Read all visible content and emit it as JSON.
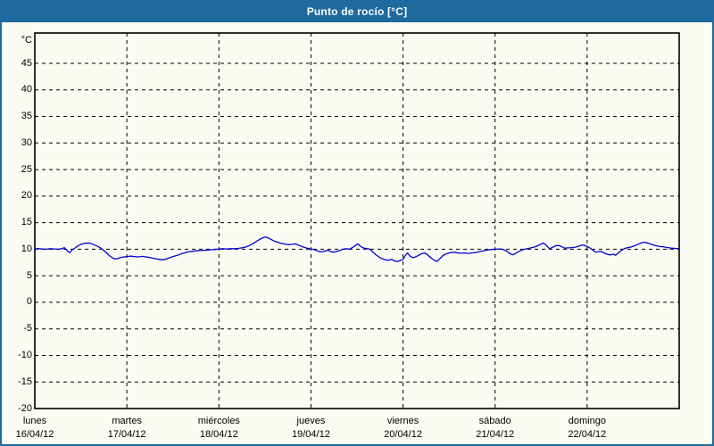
{
  "window": {
    "title": "Punto de rocío [°C]"
  },
  "colors": {
    "titlebar_bg": "#1e6a9e",
    "titlebar_text": "#ffffff",
    "page_bg": "#fafcf4",
    "outer_border": "#1e6a9e",
    "plot_frame": "#000000",
    "gridline": "#000000",
    "axis_text": "#000000",
    "series_line": "#0000cd"
  },
  "chart_data": {
    "type": "line",
    "title": "Punto de rocío [°C]",
    "ylabel": "°C",
    "legend": "none",
    "grid": "dashed horizontal every 5°C, dashed vertical at day boundaries",
    "y_axis": {
      "unit_label": "°C",
      "tick_min": -20,
      "tick_max": 45,
      "tick_step": 5
    },
    "x_axis": {
      "total_hours": 168,
      "hours_per_day": 24,
      "categories": [
        {
          "name": "lunes",
          "date": "16/04/12"
        },
        {
          "name": "martes",
          "date": "17/04/12"
        },
        {
          "name": "miércoles",
          "date": "18/04/12"
        },
        {
          "name": "jueves",
          "date": "19/04/12"
        },
        {
          "name": "viernes",
          "date": "20/04/12"
        },
        {
          "name": "sábado",
          "date": "21/04/12"
        },
        {
          "name": "domingo",
          "date": "22/04/12"
        }
      ]
    },
    "series": [
      {
        "name": "Punto de rocío",
        "unit": "°C",
        "color": "#0000cd",
        "points_hours_value": [
          [
            0,
            10.05
          ],
          [
            1,
            10.1
          ],
          [
            2,
            10.05
          ],
          [
            3,
            10.0
          ],
          [
            4,
            10.1
          ],
          [
            5,
            10.05
          ],
          [
            6,
            10.0
          ],
          [
            7,
            10.1
          ],
          [
            7.7,
            10.3
          ],
          [
            8.4,
            9.75
          ],
          [
            9.1,
            9.35
          ],
          [
            9.8,
            9.9
          ],
          [
            10.6,
            10.3
          ],
          [
            11.4,
            10.7
          ],
          [
            12.2,
            10.95
          ],
          [
            13,
            11.1
          ],
          [
            13.8,
            11.15
          ],
          [
            14.6,
            11.1
          ],
          [
            15.4,
            10.85
          ],
          [
            16.2,
            10.6
          ],
          [
            17,
            10.3
          ],
          [
            17.8,
            9.9
          ],
          [
            18.6,
            9.4
          ],
          [
            19.4,
            8.8
          ],
          [
            20.2,
            8.4
          ],
          [
            20.9,
            8.15
          ],
          [
            21.7,
            8.25
          ],
          [
            22.5,
            8.45
          ],
          [
            23.2,
            8.55
          ],
          [
            24,
            8.6
          ],
          [
            25,
            8.7
          ],
          [
            26,
            8.6
          ],
          [
            27,
            8.55
          ],
          [
            28,
            8.65
          ],
          [
            29,
            8.55
          ],
          [
            30,
            8.45
          ],
          [
            30.8,
            8.3
          ],
          [
            31.6,
            8.2
          ],
          [
            32.4,
            8.1
          ],
          [
            33.2,
            8.0
          ],
          [
            34,
            8.1
          ],
          [
            34.8,
            8.3
          ],
          [
            35.6,
            8.5
          ],
          [
            36.4,
            8.7
          ],
          [
            37.2,
            8.85
          ],
          [
            38,
            9.1
          ],
          [
            39,
            9.3
          ],
          [
            40,
            9.5
          ],
          [
            41,
            9.6
          ],
          [
            42,
            9.7
          ],
          [
            43,
            9.75
          ],
          [
            44,
            9.8
          ],
          [
            45,
            9.85
          ],
          [
            46,
            9.9
          ],
          [
            47,
            9.95
          ],
          [
            48,
            10.05
          ],
          [
            49,
            10.1
          ],
          [
            50,
            10.05
          ],
          [
            51,
            10.1
          ],
          [
            52,
            10.1
          ],
          [
            53,
            10.15
          ],
          [
            54,
            10.25
          ],
          [
            55,
            10.4
          ],
          [
            56,
            10.7
          ],
          [
            57,
            11.1
          ],
          [
            58,
            11.6
          ],
          [
            59,
            12.0
          ],
          [
            60,
            12.3
          ],
          [
            60.8,
            12.15
          ],
          [
            61.6,
            11.85
          ],
          [
            62.4,
            11.55
          ],
          [
            63.2,
            11.35
          ],
          [
            64,
            11.15
          ],
          [
            65,
            11.0
          ],
          [
            66,
            10.85
          ],
          [
            67,
            10.9
          ],
          [
            68,
            11.0
          ],
          [
            69,
            10.7
          ],
          [
            70,
            10.4
          ],
          [
            71,
            10.2
          ],
          [
            72,
            10.05
          ],
          [
            73,
            9.9
          ],
          [
            74,
            9.6
          ],
          [
            74.8,
            9.5
          ],
          [
            75.6,
            9.65
          ],
          [
            76.4,
            9.8
          ],
          [
            77.2,
            9.55
          ],
          [
            78,
            9.45
          ],
          [
            78.8,
            9.6
          ],
          [
            79.6,
            9.8
          ],
          [
            80.4,
            10.0
          ],
          [
            81.2,
            10.1
          ],
          [
            82,
            10.0
          ],
          [
            82.8,
            10.3
          ],
          [
            83.6,
            10.7
          ],
          [
            84.2,
            11.0
          ],
          [
            85,
            10.5
          ],
          [
            85.8,
            10.2
          ],
          [
            86.6,
            10.1
          ],
          [
            87.4,
            10.0
          ],
          [
            88.2,
            9.4
          ],
          [
            89,
            8.9
          ],
          [
            90,
            8.4
          ],
          [
            91,
            8.1
          ],
          [
            92,
            7.9
          ],
          [
            93,
            8.1
          ],
          [
            93.8,
            7.8
          ],
          [
            94.6,
            7.7
          ],
          [
            95.4,
            7.9
          ],
          [
            96,
            8.1
          ],
          [
            96.6,
            8.8
          ],
          [
            97.2,
            9.3
          ],
          [
            97.8,
            8.7
          ],
          [
            98.6,
            8.4
          ],
          [
            99.4,
            8.6
          ],
          [
            100.2,
            8.9
          ],
          [
            101,
            9.2
          ],
          [
            101.8,
            9.3
          ],
          [
            102.6,
            8.8
          ],
          [
            103.4,
            8.3
          ],
          [
            104.2,
            7.9
          ],
          [
            104.9,
            7.7
          ],
          [
            105.6,
            8.2
          ],
          [
            106.4,
            8.8
          ],
          [
            107.2,
            9.1
          ],
          [
            108,
            9.3
          ],
          [
            109,
            9.45
          ],
          [
            110,
            9.35
          ],
          [
            111,
            9.25
          ],
          [
            112,
            9.3
          ],
          [
            113,
            9.2
          ],
          [
            114,
            9.3
          ],
          [
            115,
            9.4
          ],
          [
            116,
            9.55
          ],
          [
            117,
            9.7
          ],
          [
            118,
            9.85
          ],
          [
            119,
            9.95
          ],
          [
            120,
            10.0
          ],
          [
            121,
            10.05
          ],
          [
            122,
            10.0
          ],
          [
            123,
            9.65
          ],
          [
            124,
            9.1
          ],
          [
            124.7,
            8.95
          ],
          [
            125.4,
            9.25
          ],
          [
            126.2,
            9.6
          ],
          [
            127,
            9.85
          ],
          [
            128,
            10.05
          ],
          [
            129,
            10.2
          ],
          [
            130,
            10.35
          ],
          [
            131,
            10.6
          ],
          [
            132,
            11.0
          ],
          [
            132.6,
            11.15
          ],
          [
            133.4,
            10.7
          ],
          [
            134.2,
            10.1
          ],
          [
            135,
            10.35
          ],
          [
            135.8,
            10.65
          ],
          [
            136.6,
            10.7
          ],
          [
            137.4,
            10.45
          ],
          [
            138.2,
            10.2
          ],
          [
            139,
            10.25
          ],
          [
            140,
            10.3
          ],
          [
            141,
            10.4
          ],
          [
            142,
            10.6
          ],
          [
            142.8,
            10.8
          ],
          [
            143.6,
            10.65
          ],
          [
            144,
            10.5
          ],
          [
            144.8,
            10.2
          ],
          [
            145.6,
            9.8
          ],
          [
            146.2,
            9.45
          ],
          [
            146.9,
            9.55
          ],
          [
            147.6,
            9.6
          ],
          [
            148.4,
            9.3
          ],
          [
            149.2,
            9.05
          ],
          [
            150,
            8.9
          ],
          [
            150.8,
            9.05
          ],
          [
            151.4,
            8.85
          ],
          [
            152.2,
            9.35
          ],
          [
            153,
            9.8
          ],
          [
            153.8,
            10.15
          ],
          [
            154.6,
            10.3
          ],
          [
            155.4,
            10.4
          ],
          [
            156.2,
            10.6
          ],
          [
            157,
            10.85
          ],
          [
            158,
            11.15
          ],
          [
            158.8,
            11.3
          ],
          [
            159.6,
            11.2
          ],
          [
            160.4,
            11.0
          ],
          [
            161.2,
            10.8
          ],
          [
            162,
            10.65
          ],
          [
            163,
            10.5
          ],
          [
            164,
            10.45
          ],
          [
            165,
            10.3
          ],
          [
            166,
            10.2
          ],
          [
            167,
            10.15
          ],
          [
            168,
            10.1
          ]
        ]
      }
    ]
  }
}
